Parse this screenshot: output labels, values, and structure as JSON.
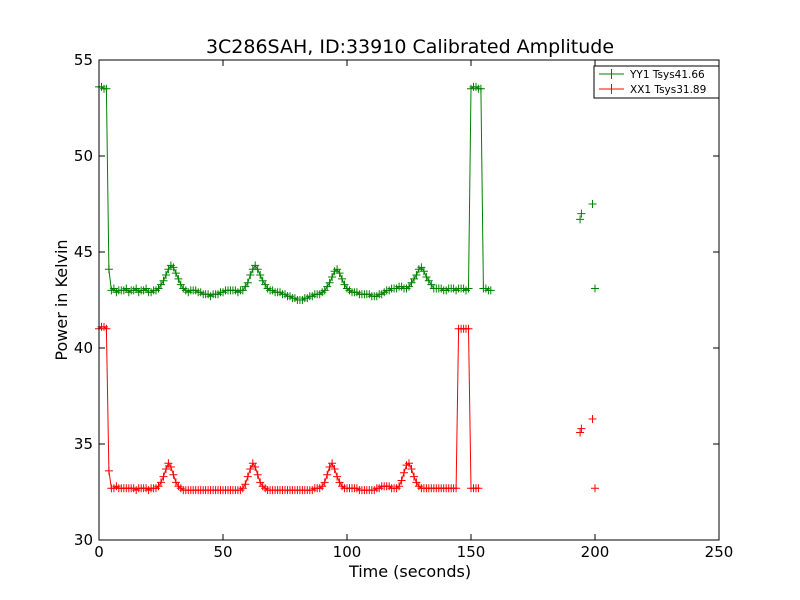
{
  "chart_data": {
    "type": "line",
    "title": "3C286SAH, ID:33910 Calibrated Amplitude",
    "xlabel": "Time (seconds)",
    "ylabel": "Power in Kelvin",
    "xlim": [
      0,
      250
    ],
    "ylim": [
      30,
      55
    ],
    "xticks": [
      "0",
      "50",
      "100",
      "150",
      "200",
      "250"
    ],
    "yticks": [
      "30",
      "35",
      "40",
      "45",
      "50",
      "55"
    ],
    "grid": false,
    "legend_position": "top-right",
    "marker": "+",
    "sample_interval": 1,
    "series": [
      {
        "name": "YY1 Tsys41.66",
        "color": "#008000",
        "values": [
          53.6,
          53.6,
          53.5,
          53.5,
          44.1,
          43.0,
          43.1,
          42.9,
          43.0,
          43.0,
          43.0,
          43.1,
          42.9,
          43.0,
          43.0,
          43.1,
          42.9,
          43.0,
          43.0,
          43.1,
          42.9,
          42.9,
          43.0,
          43.0,
          43.1,
          43.3,
          43.5,
          43.8,
          44.1,
          44.3,
          44.2,
          43.9,
          43.6,
          43.3,
          43.1,
          43.0,
          42.9,
          43.0,
          43.0,
          43.0,
          42.9,
          42.9,
          42.8,
          42.8,
          42.8,
          42.7,
          42.8,
          42.8,
          42.8,
          42.9,
          42.9,
          43.0,
          43.0,
          43.0,
          43.0,
          43.0,
          42.9,
          43.0,
          43.0,
          43.2,
          43.4,
          43.8,
          44.1,
          44.3,
          44.1,
          43.8,
          43.5,
          43.3,
          43.1,
          43.0,
          43.0,
          42.9,
          42.9,
          42.9,
          42.8,
          42.8,
          42.7,
          42.7,
          42.6,
          42.6,
          42.5,
          42.5,
          42.5,
          42.6,
          42.6,
          42.7,
          42.7,
          42.8,
          42.8,
          42.8,
          42.9,
          43.0,
          43.2,
          43.4,
          43.7,
          44.0,
          44.1,
          43.9,
          43.6,
          43.3,
          43.1,
          43.0,
          42.9,
          42.9,
          42.9,
          42.8,
          42.8,
          42.8,
          42.8,
          42.8,
          42.7,
          42.7,
          42.7,
          42.8,
          42.8,
          42.9,
          43.0,
          43.0,
          43.1,
          43.1,
          43.1,
          43.2,
          43.2,
          43.1,
          43.1,
          43.2,
          43.4,
          43.6,
          43.8,
          44.1,
          44.2,
          44.0,
          43.7,
          43.5,
          43.3,
          43.1,
          43.1,
          43.1,
          43.1,
          43.0,
          43.0,
          43.1,
          43.1,
          43.1,
          43.0,
          43.1,
          43.1,
          43.1,
          43.0,
          43.1,
          53.5,
          53.6,
          53.6,
          53.5,
          53.5,
          43.1,
          43.1,
          43.0,
          43.0
        ],
        "spikes": [
          [
            194,
            46.7
          ],
          [
            194.5,
            47.0
          ],
          [
            199,
            47.5
          ],
          [
            200,
            43.1
          ]
        ]
      },
      {
        "name": "XX1 Tsys31.89",
        "color": "#ff0000",
        "values": [
          41.0,
          41.1,
          41.1,
          41.0,
          33.6,
          32.7,
          32.7,
          32.8,
          32.7,
          32.7,
          32.7,
          32.7,
          32.7,
          32.7,
          32.7,
          32.6,
          32.7,
          32.7,
          32.7,
          32.7,
          32.6,
          32.7,
          32.7,
          32.7,
          32.8,
          33.0,
          33.3,
          33.7,
          34.0,
          33.8,
          33.4,
          33.0,
          32.8,
          32.7,
          32.6,
          32.6,
          32.6,
          32.6,
          32.6,
          32.6,
          32.6,
          32.6,
          32.6,
          32.6,
          32.6,
          32.6,
          32.6,
          32.6,
          32.6,
          32.6,
          32.6,
          32.6,
          32.6,
          32.6,
          32.6,
          32.6,
          32.6,
          32.6,
          32.7,
          32.9,
          33.3,
          33.7,
          34.0,
          33.8,
          33.4,
          33.0,
          32.8,
          32.7,
          32.6,
          32.6,
          32.6,
          32.6,
          32.6,
          32.6,
          32.6,
          32.6,
          32.6,
          32.6,
          32.6,
          32.6,
          32.6,
          32.6,
          32.6,
          32.6,
          32.6,
          32.6,
          32.6,
          32.7,
          32.7,
          32.7,
          32.8,
          33.0,
          33.4,
          33.8,
          34.0,
          33.7,
          33.3,
          33.0,
          32.8,
          32.7,
          32.7,
          32.7,
          32.7,
          32.7,
          32.7,
          32.6,
          32.6,
          32.6,
          32.6,
          32.6,
          32.6,
          32.6,
          32.7,
          32.7,
          32.8,
          32.8,
          32.8,
          32.8,
          32.7,
          32.7,
          32.7,
          32.8,
          33.1,
          33.5,
          33.9,
          34.0,
          33.7,
          33.3,
          33.0,
          32.8,
          32.7,
          32.7,
          32.7,
          32.7,
          32.7,
          32.7,
          32.7,
          32.7,
          32.7,
          32.7,
          32.7,
          32.7,
          32.7,
          32.7,
          32.7,
          41.0,
          41.0,
          41.0,
          41.0,
          41.0,
          32.7,
          32.7,
          32.7,
          32.7
        ],
        "spikes": [
          [
            194,
            35.6
          ],
          [
            194.5,
            35.8
          ],
          [
            199,
            36.3
          ],
          [
            200,
            32.7
          ]
        ]
      }
    ]
  }
}
